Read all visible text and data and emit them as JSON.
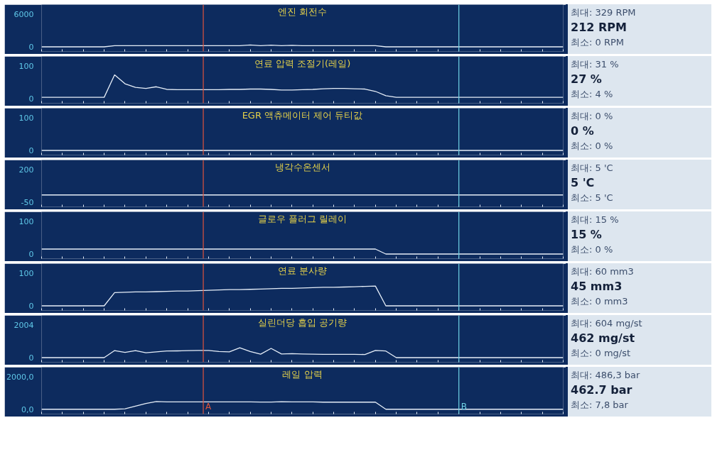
{
  "chart_data": [
    {
      "type": "line",
      "title": "엔진 회전수",
      "categories": [
        null,
        null,
        null,
        null,
        null,
        null,
        null,
        null,
        null,
        null,
        null,
        null,
        null,
        null,
        null,
        null,
        null,
        null,
        null,
        null,
        null,
        null,
        null,
        null,
        null,
        null,
        null,
        null,
        null,
        null,
        null,
        null,
        null,
        null,
        null,
        null,
        null,
        null,
        null,
        null,
        null,
        null,
        null,
        null,
        null,
        null,
        null,
        null,
        null,
        null,
        null
      ],
      "ylim": [
        -840,
        7680
      ],
      "yticks": [
        0,
        6000
      ],
      "tick_labels": "y",
      "series": [
        {
          "color": "#e6eef8",
          "values": [
            0,
            0,
            0,
            0,
            0,
            0,
            0,
            212,
            212,
            212,
            212,
            212,
            212,
            212,
            212,
            212,
            212,
            212,
            212,
            212,
            329,
            212,
            300,
            212,
            280,
            212,
            212,
            212,
            212,
            212,
            212,
            212,
            212,
            0,
            0,
            0,
            0,
            0,
            0,
            0,
            0,
            0,
            0,
            0,
            0,
            0,
            0,
            0,
            0,
            0,
            0
          ]
        }
      ],
      "annotations": [
        "최대:  329 RPM",
        "212 RPM",
        "최소:  0 RPM"
      ]
    },
    {
      "type": "line",
      "title": "연료 압력 조절기(레일)",
      "categories": [
        null,
        null,
        null,
        null,
        null,
        null,
        null,
        null,
        null,
        null,
        null,
        null,
        null,
        null,
        null,
        null,
        null,
        null,
        null,
        null,
        null,
        null,
        null,
        null,
        null,
        null,
        null,
        null,
        null,
        null,
        null,
        null,
        null,
        null,
        null,
        null,
        null,
        null,
        null,
        null,
        null,
        null,
        null,
        null,
        null,
        null,
        null,
        null,
        null,
        null,
        null
      ],
      "ylim": [
        -14,
        128
      ],
      "yticks": [
        0,
        100
      ],
      "tick_labels": "y",
      "series": [
        {
          "color": "#e6eef8",
          "values": [
            4,
            4,
            4,
            4,
            4,
            4,
            4,
            72,
            45,
            34,
            31,
            36,
            28,
            27,
            27,
            27,
            27,
            27,
            28,
            28,
            29,
            29,
            28,
            26,
            26,
            27,
            28,
            30,
            31,
            31,
            30,
            29,
            22,
            9,
            4,
            4,
            4,
            4,
            4,
            4,
            4,
            4,
            4,
            4,
            4,
            4,
            4,
            4,
            4,
            4,
            4
          ]
        }
      ],
      "annotations": [
        "최대:  31 %",
        "27 %",
        "최소:  4 %"
      ]
    },
    {
      "type": "line",
      "title": "EGR 액츄메이터 제어 듀티값",
      "categories": [
        null,
        null,
        null,
        null,
        null,
        null,
        null,
        null,
        null,
        null,
        null,
        null,
        null,
        null,
        null,
        null,
        null,
        null,
        null,
        null,
        null,
        null,
        null,
        null,
        null,
        null,
        null,
        null,
        null,
        null,
        null,
        null,
        null,
        null,
        null,
        null,
        null,
        null,
        null,
        null,
        null,
        null,
        null,
        null,
        null,
        null,
        null,
        null,
        null,
        null,
        null
      ],
      "ylim": [
        -14,
        128
      ],
      "yticks": [
        0,
        100
      ],
      "tick_labels": "y",
      "series": [
        {
          "color": "#e6eef8",
          "values": [
            0,
            0,
            0,
            0,
            0,
            0,
            0,
            0,
            0,
            0,
            0,
            0,
            0,
            0,
            0,
            0,
            0,
            0,
            0,
            0,
            0,
            0,
            0,
            0,
            0,
            0,
            0,
            0,
            0,
            0,
            0,
            0,
            0,
            0,
            0,
            0,
            0,
            0,
            0,
            0,
            0,
            0,
            0,
            0,
            0,
            0,
            0,
            0,
            0,
            0,
            0
          ]
        }
      ],
      "annotations": [
        "최대:  0 %",
        "0 %",
        "최소:  0 %"
      ]
    },
    {
      "type": "line",
      "title": "냉각수온센서",
      "categories": [
        null,
        null,
        null,
        null,
        null,
        null,
        null,
        null,
        null,
        null,
        null,
        null,
        null,
        null,
        null,
        null,
        null,
        null,
        null,
        null,
        null,
        null,
        null,
        null,
        null,
        null,
        null,
        null,
        null,
        null,
        null,
        null,
        null,
        null,
        null,
        null,
        null,
        null,
        null,
        null,
        null,
        null,
        null,
        null,
        null,
        null,
        null,
        null,
        null,
        null,
        null
      ],
      "ylim": [
        -85,
        270
      ],
      "yticks": [
        -50,
        200
      ],
      "tick_labels": "y",
      "series": [
        {
          "color": "#e6eef8",
          "values": [
            5,
            5,
            5,
            5,
            5,
            5,
            5,
            5,
            5,
            5,
            5,
            5,
            5,
            5,
            5,
            5,
            5,
            5,
            5,
            5,
            5,
            5,
            5,
            5,
            5,
            5,
            5,
            5,
            5,
            5,
            5,
            5,
            5,
            5,
            5,
            5,
            5,
            5,
            5,
            5,
            5,
            5,
            5,
            5,
            5,
            5,
            5,
            5,
            5,
            5,
            5
          ]
        }
      ],
      "annotations": [
        "최대:  5 'C",
        "5 'C",
        "최소:  5 'C"
      ]
    },
    {
      "type": "line",
      "title": "글로우 플러그 릴레이",
      "categories": [
        null,
        null,
        null,
        null,
        null,
        null,
        null,
        null,
        null,
        null,
        null,
        null,
        null,
        null,
        null,
        null,
        null,
        null,
        null,
        null,
        null,
        null,
        null,
        null,
        null,
        null,
        null,
        null,
        null,
        null,
        null,
        null,
        null,
        null,
        null,
        null,
        null,
        null,
        null,
        null,
        null,
        null,
        null,
        null,
        null,
        null,
        null,
        null,
        null,
        null,
        null
      ],
      "ylim": [
        -14,
        128
      ],
      "yticks": [
        0,
        100
      ],
      "tick_labels": "y",
      "series": [
        {
          "color": "#e6eef8",
          "values": [
            15,
            15,
            15,
            15,
            15,
            15,
            15,
            15,
            15,
            15,
            15,
            15,
            15,
            15,
            15,
            15,
            15,
            15,
            15,
            15,
            15,
            15,
            15,
            15,
            15,
            15,
            15,
            15,
            15,
            15,
            15,
            15,
            15,
            0,
            0,
            0,
            0,
            0,
            0,
            0,
            0,
            0,
            0,
            0,
            0,
            0,
            0,
            0,
            0,
            0,
            0
          ]
        }
      ],
      "annotations": [
        "최대:  15 %",
        "15 %",
        "최소:  0 %"
      ]
    },
    {
      "type": "line",
      "title": "연료 분사량",
      "categories": [
        null,
        null,
        null,
        null,
        null,
        null,
        null,
        null,
        null,
        null,
        null,
        null,
        null,
        null,
        null,
        null,
        null,
        null,
        null,
        null,
        null,
        null,
        null,
        null,
        null,
        null,
        null,
        null,
        null,
        null,
        null,
        null,
        null,
        null,
        null,
        null,
        null,
        null,
        null,
        null,
        null,
        null,
        null,
        null,
        null,
        null,
        null,
        null,
        null,
        null,
        null
      ],
      "ylim": [
        -14,
        128
      ],
      "yticks": [
        0,
        100
      ],
      "tick_labels": "y",
      "series": [
        {
          "color": "#e6eef8",
          "values": [
            0,
            0,
            0,
            0,
            0,
            0,
            0,
            40,
            41,
            42,
            42,
            43,
            44,
            45,
            45,
            46,
            47,
            48,
            49,
            49,
            50,
            51,
            52,
            53,
            53,
            54,
            55,
            56,
            56,
            57,
            58,
            59,
            60,
            0,
            0,
            0,
            0,
            0,
            0,
            0,
            0,
            0,
            0,
            0,
            0,
            0,
            0,
            0,
            0,
            0,
            0
          ]
        }
      ],
      "annotations": [
        "최대:  60 mm3",
        "45 mm3",
        "최소:  0 mm3"
      ]
    },
    {
      "type": "line",
      "title": "실린더당 흡입 공기량",
      "categories": [
        null,
        null,
        null,
        null,
        null,
        null,
        null,
        null,
        null,
        null,
        null,
        null,
        null,
        null,
        null,
        null,
        null,
        null,
        null,
        null,
        null,
        null,
        null,
        null,
        null,
        null,
        null,
        null,
        null,
        null,
        null,
        null,
        null,
        null,
        null,
        null,
        null,
        null,
        null,
        null,
        null,
        null,
        null,
        null,
        null,
        null,
        null,
        null,
        null,
        null,
        null
      ],
      "ylim": [
        -280,
        2565
      ],
      "yticks": [
        0,
        2004
      ],
      "tick_labels": "y",
      "series": [
        {
          "color": "#e6eef8",
          "values": [
            0,
            0,
            0,
            0,
            0,
            0,
            0,
            430,
            320,
            430,
            300,
            350,
            400,
            410,
            430,
            440,
            440,
            370,
            350,
            600,
            370,
            210,
            560,
            220,
            240,
            220,
            210,
            200,
            200,
            200,
            200,
            190,
            440,
            400,
            0,
            0,
            0,
            0,
            0,
            0,
            0,
            0,
            0,
            0,
            0,
            0,
            0,
            0,
            0,
            0,
            0
          ]
        }
      ],
      "annotations": [
        "최대:  604 mg/st",
        "462 mg/st",
        "최소:  0 mg/st"
      ]
    },
    {
      "type": "line",
      "title": "레일 압력",
      "categories": [
        null,
        null,
        null,
        null,
        null,
        null,
        null,
        null,
        null,
        null,
        null,
        null,
        null,
        null,
        null,
        null,
        null,
        null,
        null,
        null,
        null,
        null,
        null,
        null,
        null,
        null,
        null,
        null,
        null,
        null,
        null,
        null,
        null,
        null,
        null,
        null,
        null,
        null,
        null,
        null,
        null,
        null,
        null,
        null,
        null,
        null,
        null,
        null,
        null,
        null,
        null
      ],
      "ylim": [
        -280,
        2560
      ],
      "yticks": [
        {
          "value": 0,
          "label": "0,0"
        },
        {
          "value": 2000,
          "label": "2000,0"
        }
      ],
      "tick_labels": "y",
      "series": [
        {
          "color": "#e6eef8",
          "values": [
            10,
            10,
            10,
            10,
            10,
            10,
            10,
            10,
            40,
            200,
            360,
            480,
            460,
            460,
            460,
            460,
            460,
            460,
            460,
            460,
            460,
            450,
            450,
            470,
            460,
            460,
            460,
            440,
            440,
            440,
            440,
            440,
            440,
            10,
            10,
            10,
            10,
            10,
            10,
            10,
            10,
            10,
            10,
            10,
            10,
            10,
            10,
            10,
            10,
            10,
            10
          ]
        }
      ],
      "annotations": [
        "최대: 486,3 bar",
        "462.7 bar",
        "최소:  7,8 bar",
        "A",
        "B"
      ]
    }
  ]
}
